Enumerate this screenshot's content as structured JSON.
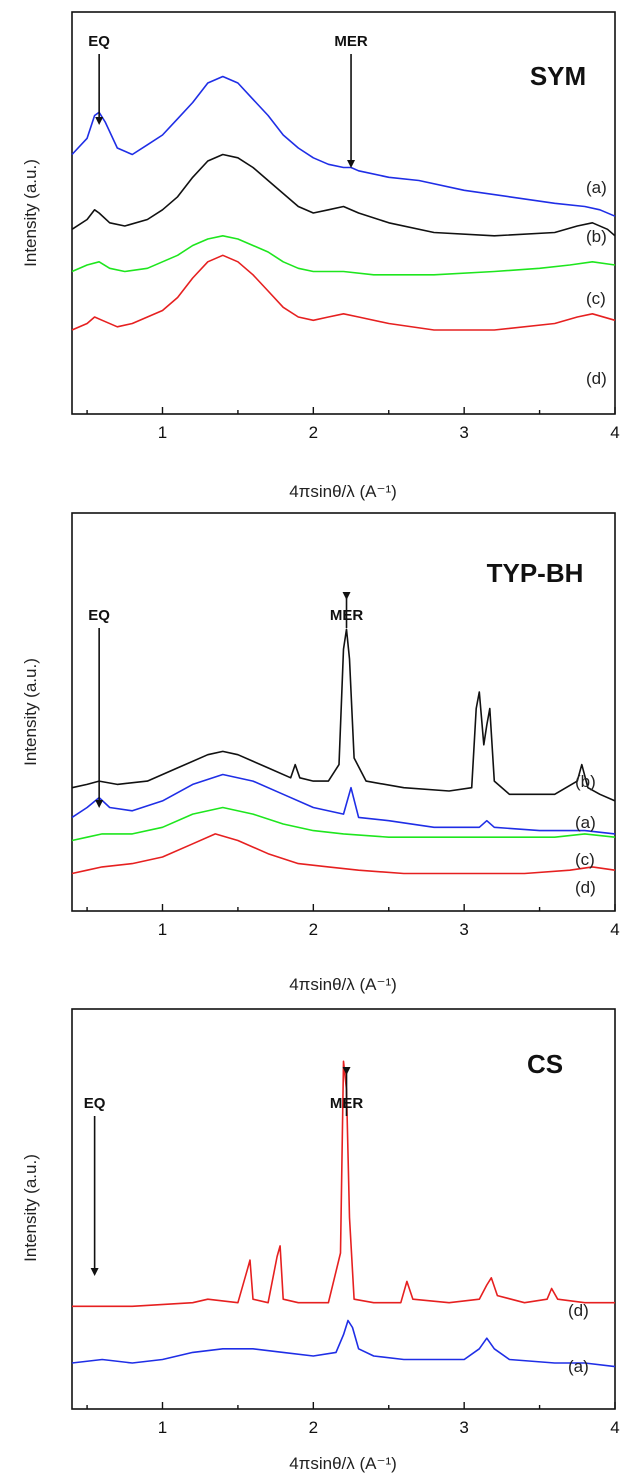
{
  "colors": {
    "a": "#1f2ee6",
    "b": "#111111",
    "c": "#1ee61e",
    "d": "#e62020"
  },
  "chart_data": [
    {
      "type": "line",
      "title": "SYM",
      "xlabel": "4πsinθ/λ (A⁻¹)",
      "ylabel": "Intensity (a.u.)",
      "xlim": [
        0.4,
        4.0
      ],
      "xticks": [
        "1",
        "2",
        "3",
        "4"
      ],
      "ylim": [
        0,
        100
      ],
      "annotations": [
        {
          "text": "EQ",
          "x": 0.58
        },
        {
          "text": "MER",
          "x": 2.25
        }
      ],
      "series": [
        {
          "name": "(a)",
          "color_key": "a",
          "x": [
            0.4,
            0.5,
            0.55,
            0.58,
            0.62,
            0.7,
            0.8,
            0.9,
            1.0,
            1.1,
            1.2,
            1.3,
            1.4,
            1.5,
            1.6,
            1.7,
            1.8,
            1.9,
            2.0,
            2.1,
            2.2,
            2.25,
            2.3,
            2.5,
            2.7,
            3.0,
            3.3,
            3.6,
            3.8,
            3.9,
            4.0
          ],
          "y": [
            74,
            79,
            86,
            87,
            84,
            76,
            74,
            77,
            80,
            85,
            90,
            96,
            98,
            96,
            91,
            86,
            80,
            76,
            73,
            71,
            70,
            70,
            69,
            67,
            66,
            63,
            61,
            59,
            58,
            57,
            55
          ]
        },
        {
          "name": "(b)",
          "color_key": "b",
          "x": [
            0.4,
            0.5,
            0.55,
            0.58,
            0.65,
            0.75,
            0.9,
            1.0,
            1.1,
            1.2,
            1.3,
            1.4,
            1.5,
            1.6,
            1.7,
            1.8,
            1.9,
            2.0,
            2.1,
            2.2,
            2.3,
            2.5,
            2.8,
            3.2,
            3.6,
            3.75,
            3.85,
            3.95,
            4.0
          ],
          "y": [
            51,
            54,
            57,
            56,
            53,
            52,
            54,
            57,
            61,
            67,
            72,
            74,
            73,
            70,
            66,
            62,
            58,
            56,
            57,
            58,
            56,
            53,
            50,
            49,
            50,
            52,
            53,
            51,
            49
          ]
        },
        {
          "name": "(c)",
          "color_key": "c",
          "x": [
            0.4,
            0.5,
            0.58,
            0.65,
            0.75,
            0.9,
            1.0,
            1.1,
            1.2,
            1.3,
            1.4,
            1.5,
            1.6,
            1.7,
            1.8,
            1.9,
            2.0,
            2.2,
            2.4,
            2.8,
            3.2,
            3.5,
            3.7,
            3.85,
            4.0
          ],
          "y": [
            38,
            40,
            41,
            39,
            38,
            39,
            41,
            43,
            46,
            48,
            49,
            48,
            46,
            44,
            41,
            39,
            38,
            38,
            37,
            37,
            38,
            39,
            40,
            41,
            40
          ]
        },
        {
          "name": "(d)",
          "color_key": "d",
          "x": [
            0.4,
            0.5,
            0.55,
            0.6,
            0.7,
            0.8,
            0.9,
            1.0,
            1.1,
            1.2,
            1.3,
            1.4,
            1.5,
            1.6,
            1.7,
            1.8,
            1.9,
            2.0,
            2.1,
            2.2,
            2.3,
            2.5,
            2.8,
            3.2,
            3.6,
            3.75,
            3.85,
            4.0
          ],
          "y": [
            20,
            22,
            24,
            23,
            21,
            22,
            24,
            26,
            30,
            36,
            41,
            43,
            41,
            37,
            32,
            27,
            24,
            23,
            24,
            25,
            24,
            22,
            20,
            20,
            22,
            24,
            25,
            23
          ]
        }
      ],
      "curve_labels": [
        {
          "text": "(a)"
        },
        {
          "text": "(b)"
        },
        {
          "text": "(c)"
        },
        {
          "text": "(d)"
        }
      ]
    },
    {
      "type": "line",
      "title": "TYP-BH",
      "xlabel": "4πsinθ/λ (A⁻¹)",
      "ylabel": "Intensity (a.u.)",
      "xlim": [
        0.4,
        4.0
      ],
      "xticks": [
        "1",
        "2",
        "3",
        "4"
      ],
      "ylim": [
        0,
        100
      ],
      "annotations": [
        {
          "text": "EQ",
          "x": 0.58
        },
        {
          "text": "MER",
          "x": 2.22
        }
      ],
      "series": [
        {
          "name": "(b)",
          "color_key": "b",
          "x": [
            0.4,
            0.5,
            0.58,
            0.7,
            0.9,
            1.1,
            1.3,
            1.4,
            1.5,
            1.7,
            1.85,
            1.88,
            1.91,
            2.0,
            2.1,
            2.17,
            2.2,
            2.22,
            2.24,
            2.27,
            2.35,
            2.6,
            2.9,
            3.05,
            3.08,
            3.1,
            3.13,
            3.15,
            3.17,
            3.2,
            3.3,
            3.6,
            3.75,
            3.78,
            3.82,
            3.9,
            4.0
          ],
          "y": [
            31,
            32,
            33,
            32,
            33,
            37,
            41,
            42,
            41,
            37,
            34,
            38,
            34,
            33,
            33,
            38,
            73,
            79,
            70,
            40,
            33,
            31,
            30,
            31,
            55,
            60,
            44,
            50,
            55,
            33,
            29,
            29,
            33,
            38,
            31,
            29,
            27
          ]
        },
        {
          "name": "(a)",
          "color_key": "a",
          "x": [
            0.4,
            0.5,
            0.58,
            0.65,
            0.8,
            1.0,
            1.2,
            1.4,
            1.6,
            1.8,
            2.0,
            2.2,
            2.25,
            2.3,
            2.5,
            2.8,
            3.1,
            3.15,
            3.2,
            3.5,
            3.8,
            4.0
          ],
          "y": [
            22,
            25,
            28,
            25,
            24,
            27,
            32,
            35,
            33,
            29,
            25,
            23,
            31,
            22,
            21,
            19,
            19,
            21,
            19,
            18,
            18,
            17
          ]
        },
        {
          "name": "(c)",
          "color_key": "c",
          "x": [
            0.4,
            0.5,
            0.6,
            0.8,
            1.0,
            1.2,
            1.4,
            1.6,
            1.8,
            2.0,
            2.2,
            2.5,
            2.8,
            3.2,
            3.6,
            3.8,
            4.0
          ],
          "y": [
            15,
            16,
            17,
            17,
            19,
            23,
            25,
            23,
            20,
            18,
            17,
            16,
            16,
            16,
            16,
            17,
            16
          ]
        },
        {
          "name": "(d)",
          "color_key": "d",
          "x": [
            0.4,
            0.5,
            0.6,
            0.8,
            1.0,
            1.2,
            1.35,
            1.5,
            1.7,
            1.9,
            2.1,
            2.3,
            2.6,
            3.0,
            3.4,
            3.7,
            3.85,
            4.0
          ],
          "y": [
            5,
            6,
            7,
            8,
            10,
            14,
            17,
            15,
            11,
            8,
            7,
            6,
            5,
            5,
            5,
            6,
            7,
            6
          ]
        }
      ],
      "curve_labels": [
        {
          "text": "(b)"
        },
        {
          "text": "(a)"
        },
        {
          "text": "(c)"
        },
        {
          "text": "(d)"
        }
      ]
    },
    {
      "type": "line",
      "title": "CS",
      "xlabel": "4πsinθ/λ (A⁻¹)",
      "ylabel": "Intensity (a.u.)",
      "xlim": [
        0.4,
        4.0
      ],
      "xticks": [
        "1",
        "2",
        "3",
        "4"
      ],
      "ylim": [
        0,
        100
      ],
      "annotations": [
        {
          "text": "EQ",
          "x": 0.55
        },
        {
          "text": "MER",
          "x": 2.22
        }
      ],
      "series": [
        {
          "name": "(d)",
          "color_key": "d",
          "x": [
            0.4,
            0.8,
            1.2,
            1.3,
            1.5,
            1.56,
            1.58,
            1.6,
            1.7,
            1.76,
            1.78,
            1.8,
            1.9,
            2.1,
            2.18,
            2.2,
            2.22,
            2.24,
            2.27,
            2.4,
            2.58,
            2.62,
            2.66,
            2.9,
            3.1,
            3.15,
            3.18,
            3.22,
            3.4,
            3.55,
            3.58,
            3.62,
            3.8,
            4.0
          ],
          "y": [
            25,
            25,
            26,
            27,
            26,
            35,
            38,
            27,
            26,
            39,
            42,
            27,
            26,
            26,
            40,
            94,
            86,
            50,
            27,
            26,
            26,
            32,
            27,
            26,
            27,
            31,
            33,
            28,
            26,
            27,
            30,
            27,
            26,
            26
          ]
        },
        {
          "name": "(a)",
          "color_key": "a",
          "x": [
            0.4,
            0.6,
            0.8,
            1.0,
            1.2,
            1.4,
            1.6,
            1.8,
            2.0,
            2.15,
            2.2,
            2.23,
            2.26,
            2.3,
            2.4,
            2.6,
            2.8,
            3.0,
            3.1,
            3.15,
            3.2,
            3.3,
            3.6,
            3.8,
            4.0
          ],
          "y": [
            9,
            10,
            9,
            10,
            12,
            13,
            13,
            12,
            11,
            12,
            17,
            21,
            19,
            13,
            11,
            10,
            10,
            10,
            13,
            16,
            13,
            10,
            9,
            9,
            8
          ]
        }
      ],
      "curve_labels": [
        {
          "text": "(d)"
        },
        {
          "text": "(a)"
        }
      ]
    }
  ]
}
